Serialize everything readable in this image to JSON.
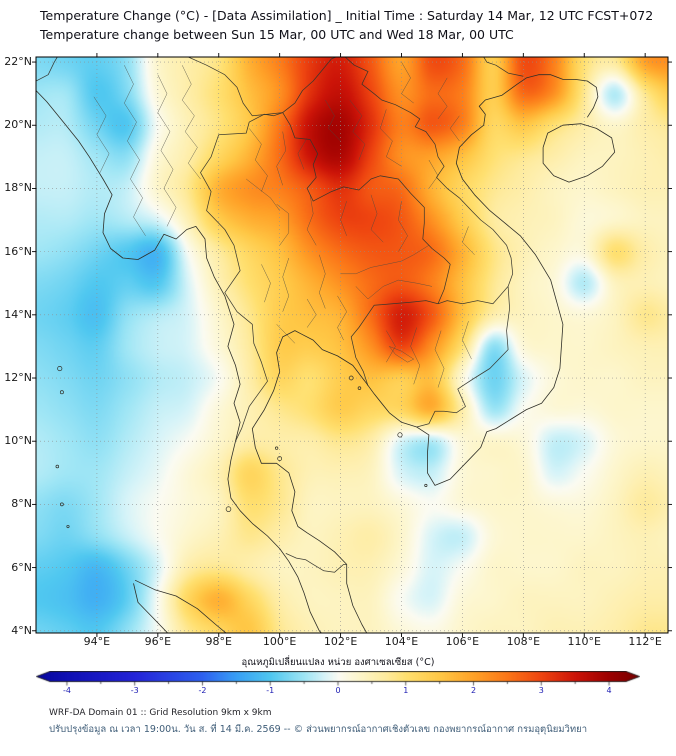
{
  "chart_data": {
    "type": "heatmap",
    "title": "Temperature Change (°C) - [Data Assimilation] _ Initial Time : Saturday 14 Mar, 12 UTC FCST+072",
    "subtitle": "Temperature change between Sun 15 Mar, 00 UTC and Wed 18 Mar, 00 UTC",
    "units": "°C",
    "view": {
      "lon_min": 92.0,
      "lon_max": 112.75,
      "lat_min": 3.93,
      "lat_max": 22.16
    },
    "x_axis": {
      "tick_values": [
        94,
        96,
        98,
        100,
        102,
        104,
        106,
        108,
        110,
        112
      ],
      "tick_labels": [
        "94°E",
        "96°E",
        "98°E",
        "100°E",
        "102°E",
        "104°E",
        "106°E",
        "108°E",
        "110°E",
        "112°E"
      ]
    },
    "y_axis": {
      "tick_values": [
        4,
        6,
        8,
        10,
        12,
        14,
        16,
        18,
        20,
        22
      ],
      "tick_labels": [
        "4°N",
        "6°N",
        "8°N",
        "10°N",
        "12°N",
        "14°N",
        "16°N",
        "18°N",
        "20°N",
        "22°N"
      ]
    },
    "grid": {
      "lon_start": 92,
      "lon_step": 1,
      "lat_start": 23,
      "lat_step": -1,
      "lon_count": 22,
      "lat_count": 21,
      "values": [
        [
          -0.6,
          -0.8,
          -0.9,
          -0.6,
          0.3,
          0.6,
          0.9,
          1.8,
          2.4,
          3.0,
          3.3,
          2.8,
          2.0,
          2.8,
          2.5,
          1.5,
          2.8,
          2.5,
          1.2,
          0.8,
          2.0,
          2.2
        ],
        [
          -0.7,
          -0.8,
          -0.9,
          -0.6,
          0.3,
          0.6,
          0.9,
          1.8,
          2.4,
          3.1,
          3.4,
          2.8,
          2.0,
          2.9,
          2.6,
          1.4,
          2.9,
          2.4,
          1.0,
          0.7,
          2.0,
          2.2
        ],
        [
          -0.5,
          -0.5,
          -1.0,
          -0.7,
          0.2,
          0.6,
          1.0,
          1.6,
          2.2,
          3.2,
          3.6,
          3.0,
          2.2,
          2.6,
          2.4,
          1.4,
          2.6,
          2.2,
          0.8,
          -0.4,
          0.8,
          1.5
        ],
        [
          -0.4,
          -0.4,
          -0.8,
          -1.0,
          0.0,
          0.5,
          0.9,
          1.5,
          2.5,
          3.6,
          3.9,
          3.2,
          2.4,
          2.8,
          2.4,
          1.2,
          1.5,
          1.0,
          0.6,
          0.3,
          0.6,
          0.8
        ],
        [
          -0.3,
          -0.3,
          -0.5,
          -0.6,
          0.2,
          0.6,
          1.2,
          1.8,
          2.6,
          3.5,
          3.8,
          3.0,
          2.2,
          2.0,
          1.6,
          1.0,
          0.8,
          0.6,
          0.4,
          0.4,
          0.5,
          0.6
        ],
        [
          -0.3,
          -0.3,
          -0.4,
          -0.3,
          0.3,
          0.8,
          1.8,
          2.2,
          2.4,
          2.8,
          3.2,
          2.8,
          2.6,
          1.8,
          1.2,
          0.8,
          0.6,
          0.4,
          0.3,
          0.4,
          0.5,
          0.5
        ],
        [
          -0.4,
          -0.4,
          -0.5,
          -0.4,
          -0.2,
          0.5,
          1.4,
          1.8,
          2.0,
          2.6,
          3.0,
          3.0,
          2.8,
          2.2,
          1.4,
          0.7,
          0.5,
          0.4,
          0.2,
          0.3,
          0.4,
          0.4
        ],
        [
          -0.5,
          -0.6,
          -0.8,
          -1.0,
          -1.2,
          0.0,
          0.7,
          1.2,
          1.6,
          2.2,
          2.6,
          2.8,
          2.8,
          2.6,
          1.8,
          0.9,
          0.5,
          0.3,
          0.2,
          1.0,
          0.6,
          0.4
        ],
        [
          -0.7,
          -0.8,
          -1.0,
          -0.9,
          -1.0,
          -0.2,
          0.5,
          1.0,
          1.4,
          1.8,
          2.2,
          2.6,
          2.8,
          2.4,
          1.6,
          0.8,
          0.4,
          0.2,
          -0.4,
          0.4,
          0.5,
          0.4
        ],
        [
          -0.8,
          -0.9,
          -1.1,
          -0.6,
          -0.4,
          -0.2,
          0.3,
          0.8,
          1.4,
          1.6,
          1.8,
          2.6,
          3.4,
          2.8,
          1.6,
          0.6,
          0.4,
          0.3,
          0.2,
          0.4,
          0.8,
          0.6
        ],
        [
          -0.7,
          -0.8,
          -0.9,
          -0.5,
          -0.3,
          -0.2,
          0.2,
          0.7,
          1.4,
          1.4,
          1.6,
          2.2,
          3.0,
          2.2,
          1.0,
          -0.6,
          0.2,
          0.3,
          0.3,
          0.4,
          0.5,
          0.5
        ],
        [
          -0.6,
          -0.7,
          -0.8,
          -0.6,
          -0.4,
          -0.3,
          0.0,
          0.6,
          1.2,
          1.0,
          1.4,
          1.6,
          1.4,
          1.6,
          0.2,
          -0.8,
          -0.2,
          0.2,
          0.3,
          0.3,
          0.4,
          0.4
        ],
        [
          -0.5,
          -0.6,
          -0.7,
          -0.5,
          -0.3,
          -0.2,
          0.2,
          0.5,
          0.8,
          1.0,
          1.4,
          1.2,
          1.2,
          1.8,
          0.6,
          -0.5,
          0.0,
          0.2,
          0.2,
          0.3,
          0.3,
          0.3
        ],
        [
          -0.4,
          -0.5,
          -0.6,
          -0.4,
          -0.2,
          0.0,
          0.3,
          0.6,
          0.6,
          0.6,
          0.8,
          0.6,
          -0.2,
          -0.4,
          0.2,
          0.3,
          0.2,
          -0.3,
          -0.2,
          0.2,
          0.3,
          0.3
        ],
        [
          -0.4,
          -0.5,
          -0.5,
          -0.3,
          -0.1,
          0.2,
          0.5,
          1.2,
          0.8,
          0.5,
          0.5,
          0.4,
          -0.2,
          -0.3,
          0.2,
          0.3,
          0.3,
          -0.2,
          0.0,
          0.3,
          0.5,
          0.4
        ],
        [
          -0.6,
          -0.7,
          -0.5,
          -0.2,
          0.0,
          0.2,
          0.4,
          1.0,
          0.8,
          0.4,
          0.4,
          0.4,
          0.2,
          0.0,
          0.2,
          0.3,
          0.3,
          0.2,
          0.2,
          0.4,
          0.7,
          0.5
        ],
        [
          -0.7,
          -0.8,
          -0.6,
          -0.3,
          0.0,
          0.3,
          0.5,
          0.8,
          0.6,
          0.4,
          0.5,
          0.6,
          0.3,
          -0.2,
          -0.3,
          0.2,
          0.3,
          0.3,
          0.3,
          0.4,
          0.5,
          0.4
        ],
        [
          -0.9,
          -1.0,
          -1.2,
          -0.8,
          -0.2,
          0.6,
          0.8,
          0.6,
          0.4,
          0.4,
          0.5,
          0.5,
          0.2,
          -0.2,
          0.0,
          0.3,
          0.3,
          0.3,
          0.4,
          0.4,
          0.5,
          0.5
        ],
        [
          -1.0,
          -1.1,
          -1.3,
          -0.9,
          0.0,
          1.2,
          1.8,
          1.2,
          0.6,
          0.4,
          0.4,
          0.4,
          0.0,
          -0.2,
          0.2,
          0.3,
          0.4,
          0.4,
          0.4,
          0.5,
          0.6,
          0.6
        ],
        [
          -0.8,
          -0.9,
          -1.0,
          -0.6,
          0.0,
          0.8,
          1.2,
          1.5,
          0.8,
          0.5,
          0.4,
          0.4,
          0.2,
          0.1,
          0.3,
          0.4,
          0.4,
          0.5,
          0.5,
          0.6,
          0.8,
          0.8
        ],
        [
          -0.7,
          -0.8,
          -0.9,
          -0.5,
          0.1,
          0.7,
          1.0,
          1.2,
          0.8,
          0.5,
          0.4,
          0.4,
          0.3,
          0.2,
          0.3,
          0.4,
          0.5,
          0.5,
          0.6,
          0.7,
          0.9,
          0.9
        ]
      ]
    },
    "colorbar": {
      "title": "อุณหภูมิเปลี่ยนแปลง หน่วย องศาเซลเซียส (°C)",
      "min": -4.25,
      "max": 4.25,
      "tick_values": [
        -4,
        -3,
        -2,
        -1,
        0,
        1,
        2,
        3,
        4
      ],
      "tick_labels": [
        "-4",
        "-3",
        "-2",
        "-1",
        "0",
        "1",
        "2",
        "3",
        "4"
      ],
      "tick_color": "#2121b4",
      "stops": [
        [
          -4.4,
          "#0808a0"
        ],
        [
          -4.0,
          "#1010b4"
        ],
        [
          -3.0,
          "#2424d8"
        ],
        [
          -2.0,
          "#2e62f0"
        ],
        [
          -1.5,
          "#38a0f5"
        ],
        [
          -1.0,
          "#50c8f0"
        ],
        [
          -0.5,
          "#a0e6f5"
        ],
        [
          -0.2,
          "#d8f4f8"
        ],
        [
          0.0,
          "#fbfbf2"
        ],
        [
          0.3,
          "#fdf6cc"
        ],
        [
          0.7,
          "#feeb9e"
        ],
        [
          1.0,
          "#ffe070"
        ],
        [
          1.5,
          "#ffc846"
        ],
        [
          2.0,
          "#ffa228"
        ],
        [
          2.5,
          "#fb7618"
        ],
        [
          3.0,
          "#ee4410"
        ],
        [
          3.5,
          "#cc1408"
        ],
        [
          4.0,
          "#9c0000"
        ],
        [
          4.4,
          "#7a0000"
        ]
      ]
    }
  },
  "footer": {
    "line1": "WRF-DA Domain 01 :: Grid Resolution 9km x 9km",
    "line2": "ปรับปรุงข้อมูล ณ เวลา 19:00น. วัน ส. ที่ 14 มี.ค. 2569 -- © ส่วนพยากรณ์อากาศเชิงตัวเลข กองพยากรณ์อากาศ กรมอุตุนิยมวิทยา"
  }
}
